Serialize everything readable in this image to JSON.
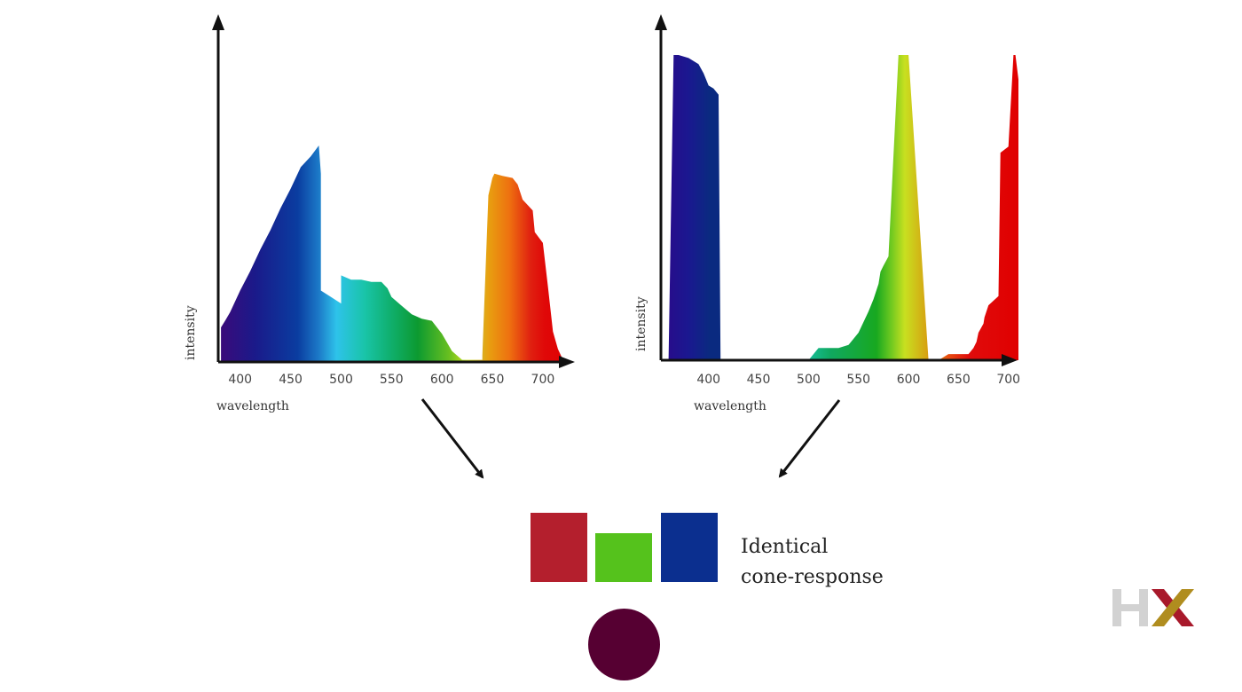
{
  "chart_data": [
    {
      "type": "area",
      "xlabel": "wavelength",
      "ylabel": "intensity",
      "xticks": [
        400,
        450,
        500,
        550,
        600,
        650,
        700
      ],
      "xlim": [
        380,
        730
      ],
      "ylim": [
        0,
        100
      ],
      "x": [
        381,
        385,
        390,
        400,
        410,
        420,
        430,
        440,
        450,
        460,
        470,
        478,
        480,
        480,
        490,
        500,
        500,
        510,
        520,
        530,
        540,
        546,
        550,
        560,
        570,
        580,
        590,
        600,
        610,
        620,
        625,
        625,
        630,
        640,
        640,
        646,
        650,
        652,
        660,
        670,
        675,
        680,
        690,
        692,
        700,
        705,
        710,
        715,
        720,
        725,
        730
      ],
      "y": [
        16,
        19,
        23,
        33,
        42,
        52,
        61,
        71,
        80,
        90,
        95,
        100,
        87,
        33,
        30,
        27,
        40,
        38,
        38,
        37,
        37,
        34,
        30,
        26,
        22,
        20,
        19,
        13,
        5,
        1,
        1,
        1,
        1,
        1,
        3,
        77,
        85,
        87,
        86,
        85,
        82,
        75,
        70,
        60,
        55,
        35,
        14,
        6,
        1,
        0,
        0
      ]
    },
    {
      "type": "area",
      "xlabel": "wavelength",
      "ylabel": "intensity",
      "xticks": [
        400,
        450,
        500,
        550,
        600,
        650,
        700
      ],
      "xlim": [
        355,
        710
      ],
      "ylim": [
        0,
        100
      ],
      "x": [
        360,
        365,
        370,
        380,
        390,
        395,
        400,
        405,
        410,
        412,
        420,
        450,
        500,
        510,
        515,
        520,
        525,
        530,
        540,
        550,
        560,
        565,
        570,
        572,
        575,
        580,
        590,
        592,
        600,
        620,
        630,
        640,
        650,
        658,
        660,
        665,
        668,
        670,
        675,
        676,
        680,
        690,
        692,
        700,
        705,
        707,
        710
      ],
      "y": [
        0,
        100,
        100,
        99,
        97,
        94,
        90,
        89,
        87,
        0,
        0,
        0,
        0,
        4,
        4,
        4,
        4,
        4,
        5,
        9,
        16,
        20,
        25,
        29,
        31,
        34,
        100,
        100,
        100,
        0,
        0,
        2,
        2,
        2,
        2,
        4,
        6,
        9,
        12,
        14,
        18,
        21,
        68,
        70,
        100,
        100,
        92
      ],
      "bands": [
        [
          365,
          412
        ],
        [
          500,
          600
        ],
        [
          630,
          707
        ]
      ]
    }
  ],
  "swatches": {
    "red": "#b41f2d",
    "green": "#55c21c",
    "blue": "#0b2f8f",
    "mix": "#560032"
  },
  "caption": {
    "line1": "Identical",
    "line2": "cone-response"
  },
  "logo": {
    "text": "HX",
    "h_color": "#d2d2d2",
    "x_color_left": "#a8192b",
    "x_color_right": "#b08d1f"
  }
}
